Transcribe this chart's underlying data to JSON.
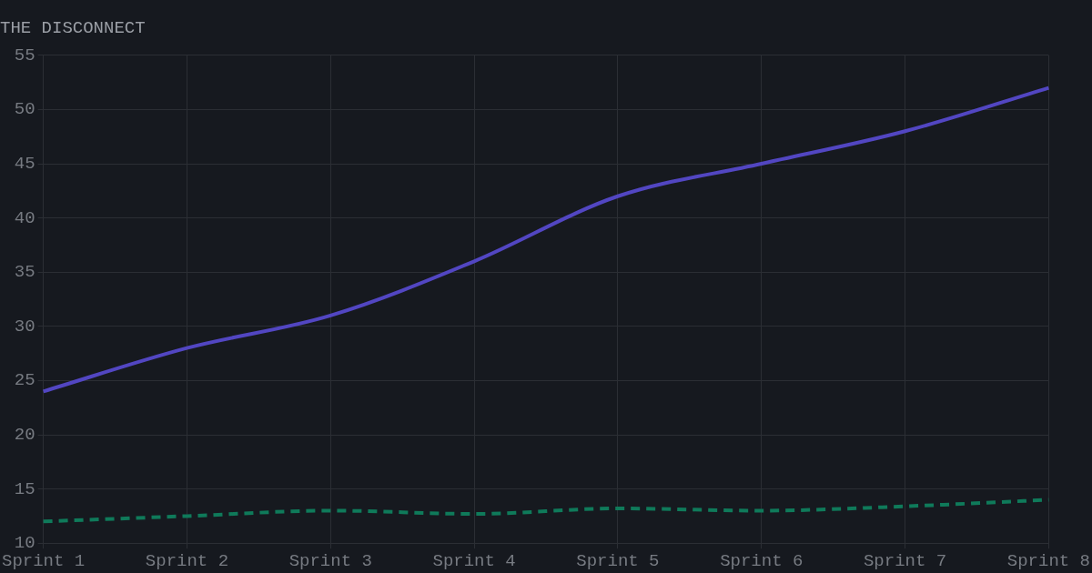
{
  "chart_data": {
    "type": "line",
    "title": "THE DISCONNECT",
    "categories": [
      "Sprint 1",
      "Sprint 2",
      "Sprint 3",
      "Sprint 4",
      "Sprint 5",
      "Sprint 6",
      "Sprint 7",
      "Sprint 8"
    ],
    "series": [
      {
        "color": "#5246c2",
        "line_style": "solid",
        "values": [
          24,
          28,
          31,
          36,
          42,
          45,
          48,
          52
        ]
      },
      {
        "color": "#0f7a5a",
        "line_style": "dashed",
        "values": [
          12,
          12.5,
          13,
          12.7,
          13.2,
          13,
          13.4,
          14
        ]
      }
    ],
    "ylim": [
      10,
      55
    ],
    "yticks": [
      10,
      15,
      20,
      25,
      30,
      35,
      40,
      45,
      50,
      55
    ],
    "grid": true,
    "marker": "none"
  }
}
